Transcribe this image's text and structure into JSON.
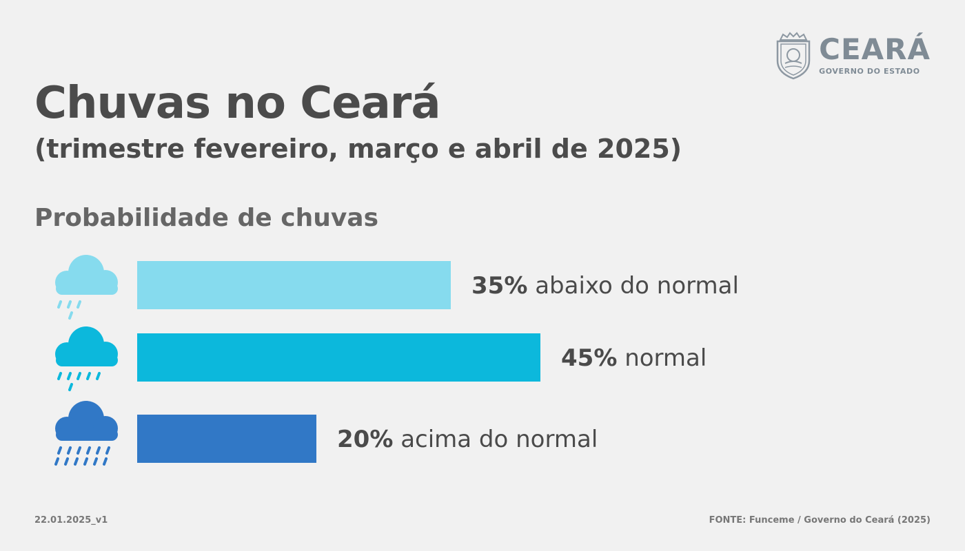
{
  "logo": {
    "name": "CEARÁ",
    "subtitle": "GOVERNO DO ESTADO",
    "color": "#7f8b95",
    "icon": "state-coat-of-arms-icon"
  },
  "header": {
    "title": "Chuvas no Ceará",
    "subtitle": "(trimestre fevereiro, março e abril de 2025)"
  },
  "section_title": "Probabilidade de chuvas",
  "chart_data": {
    "type": "bar",
    "orientation": "horizontal",
    "categories": [
      "abaixo do normal",
      "normal",
      "acima do normal"
    ],
    "values": [
      35,
      45,
      20
    ],
    "value_labels": [
      "35%",
      "45%",
      "20%"
    ],
    "colors": [
      "#86dbee",
      "#0cb8dc",
      "#3178c6"
    ],
    "icons": [
      "light-rain-cloud-icon",
      "moderate-rain-cloud-icon",
      "heavy-rain-cloud-icon"
    ],
    "title": "Probabilidade de chuvas",
    "xlim": [
      0,
      100
    ],
    "grid": false,
    "legend": false
  },
  "footer": {
    "version": "22.01.2025_v1",
    "source": "FONTE: Funceme / Governo do Ceará (2025)"
  }
}
